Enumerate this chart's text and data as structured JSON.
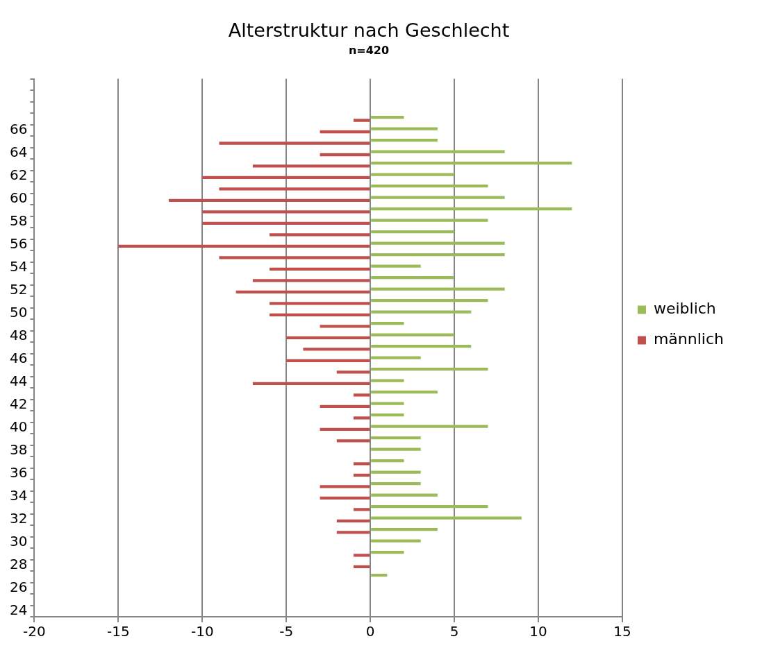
{
  "chart_data": {
    "type": "bar",
    "orientation": "horizontal",
    "title": "Alterstruktur nach Geschlecht",
    "subtitle": "n=420",
    "categories": [
      null,
      null,
      null,
      null,
      "66",
      null,
      "64",
      null,
      "62",
      null,
      "60",
      null,
      "58",
      null,
      "56",
      null,
      "54",
      null,
      "52",
      null,
      "50",
      null,
      "48",
      null,
      "46",
      null,
      "44",
      null,
      "42",
      null,
      "40",
      null,
      "38",
      null,
      "36",
      null,
      "34",
      null,
      "32",
      null,
      "30",
      null,
      "28",
      null,
      "26",
      null,
      "24"
    ],
    "series": [
      {
        "name": "weiblich",
        "color": "#9bbb59",
        "values": [
          null,
          null,
          null,
          2,
          4,
          4,
          8,
          12,
          5,
          7,
          8,
          12,
          7,
          5,
          8,
          8,
          3,
          5,
          8,
          7,
          6,
          2,
          5,
          6,
          3,
          7,
          2,
          4,
          2,
          2,
          7,
          3,
          3,
          2,
          3,
          3,
          4,
          7,
          9,
          4,
          3,
          2,
          null,
          1,
          null,
          null,
          null
        ]
      },
      {
        "name": "männlich",
        "color": "#c0504d",
        "values": [
          null,
          null,
          null,
          -1,
          -3,
          -9,
          -3,
          -7,
          -10,
          -9,
          -12,
          -10,
          -10,
          -6,
          -15,
          -9,
          -6,
          -7,
          -8,
          -6,
          -6,
          -3,
          -5,
          -4,
          -5,
          -2,
          -7,
          -1,
          -3,
          -1,
          -3,
          -2,
          null,
          -1,
          -1,
          -3,
          -3,
          -1,
          -2,
          -2,
          null,
          -1,
          -1,
          null,
          null,
          null,
          null
        ]
      }
    ],
    "xlim": [
      -20,
      15
    ],
    "xticks": [
      -20,
      -15,
      -10,
      -5,
      0,
      5,
      10,
      15
    ],
    "grid": "x",
    "legend": "right"
  }
}
